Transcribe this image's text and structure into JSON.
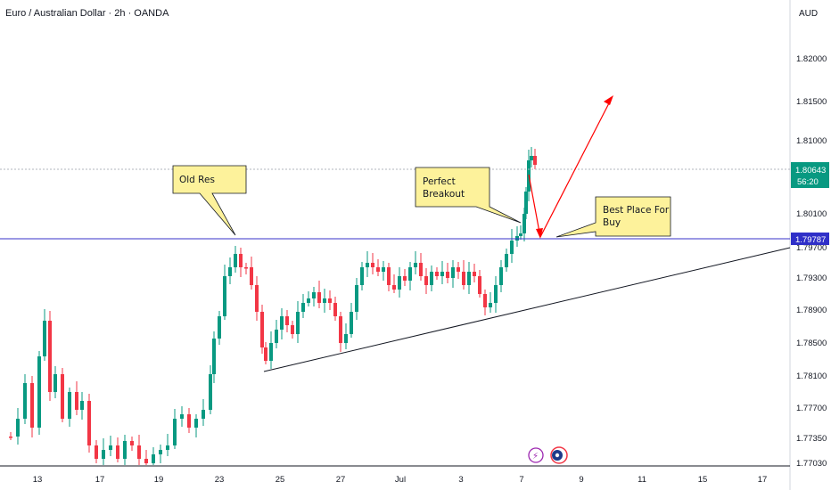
{
  "header": {
    "symbol_title": "Euro / Australian Dollar · 2h · OANDA",
    "currency": "AUD"
  },
  "price_tags": {
    "current": "1.80643",
    "countdown": "56:20",
    "horizontal_level": "1.79787"
  },
  "colors": {
    "up_candle": "#089981",
    "down_candle": "#f23645",
    "level_line": "#3730c8",
    "trend_line": "#131722",
    "arrow": "#ff0000",
    "callout_fill": "#fdf29b",
    "callout_border": "#131722",
    "price_tag_green": "#089981",
    "price_tag_blue": "#2f2fc8"
  },
  "chart_data": {
    "type": "candlestick",
    "yticks": [
      "1.82000",
      "1.81500",
      "1.81000",
      "1.80100",
      "1.79700",
      "1.79300",
      "1.78900",
      "1.78500",
      "1.78100",
      "1.77700",
      "1.77350",
      "1.77030"
    ],
    "xticks": [
      "13",
      "17",
      "19",
      "23",
      "25",
      "27",
      "Jul",
      "3",
      "7",
      "9",
      "11",
      "15",
      "17"
    ],
    "ylim": [
      1.7703,
      1.8232
    ],
    "horizontal_level": 1.79787,
    "current_price": 1.80643,
    "annotations": [
      {
        "label": "Old Res",
        "lines": [
          "Old Res"
        ]
      },
      {
        "label": "Perfect Breakout",
        "lines": [
          "Perfect",
          "Breakout"
        ]
      },
      {
        "label": "Best Place For Buy",
        "lines": [
          "Best Place For",
          "Buy"
        ]
      }
    ],
    "trendline": {
      "from_price": 1.7818,
      "to_price": 1.7966
    },
    "arrows": [
      {
        "from_price": 1.8052,
        "to_price": 1.7982
      },
      {
        "from_price": 1.7982,
        "to_price": 1.8156
      }
    ]
  }
}
